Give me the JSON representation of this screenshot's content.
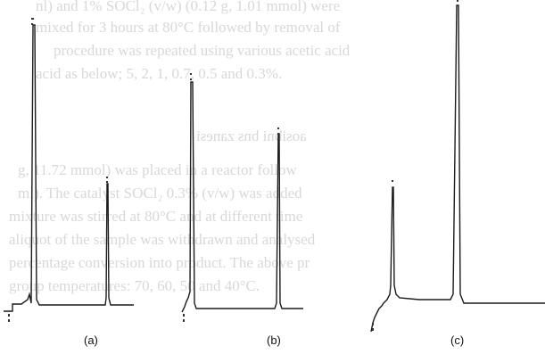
{
  "figure": {
    "panels": [
      {
        "id": "a",
        "label": "(a)"
      },
      {
        "id": "b",
        "label": "(b)"
      },
      {
        "id": "c",
        "label": "(c)"
      }
    ]
  },
  "bleed_through": {
    "lines": [
      "nl) and 1% SOCl₂ (v/w) (0.12 g, 1.01 mmol) were",
      "mixed for 3 hours at 80°C followed by removal of",
      "procedure was repeated using various acetic acid",
      "acid as below; 5, 2, 1, 0.7, 0.5 and 0.3%.",
      "",
      "aosibni bns zanesi",
      "",
      "g, 11.72 mmol) was placed in a reactor follow",
      "ml). The catalyst SOCl₂ 0.3% (v/w) was added",
      "mixture was stirred at 80°C and at different time",
      "aliquot of the sample was withdrawn and analysed",
      "percentage conversion into product. The above pr",
      "group temperatures: 70, 60, 50 and 40°C."
    ]
  }
}
